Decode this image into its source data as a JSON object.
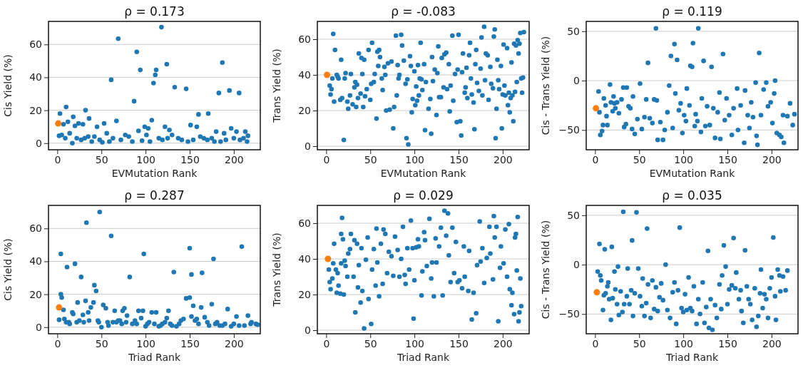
{
  "chart_data": [
    {
      "type": "scatter",
      "title": "ρ = 0.173",
      "xlabel": "EVMutation Rank",
      "ylabel": "Cis Yield (%)",
      "xlim": [
        -10,
        230
      ],
      "xticks": [
        0,
        50,
        100,
        150,
        200
      ],
      "ylim": [
        -4,
        74
      ],
      "yticks": [
        0,
        20,
        40,
        60
      ],
      "grid": "y",
      "marker": "circle",
      "series": [
        {
          "color": "#1f77b4",
          "x": [
            61,
            69,
            87,
            90,
            94,
            109,
            111,
            112,
            118,
            124,
            133,
            146,
            160,
            171,
            183,
            187,
            195,
            206,
            10,
            3,
            32,
            18,
            36,
            53,
            67,
            107,
            151,
            158,
            197,
            213,
            12,
            7,
            29,
            24,
            45,
            99,
            103,
            122,
            127,
            189,
            180,
            203,
            2,
            5,
            9,
            14,
            17,
            20,
            22,
            27,
            31,
            35,
            39,
            42,
            48,
            51,
            56,
            59,
            63,
            72,
            77,
            81,
            85,
            92,
            96,
            101,
            105,
            115,
            119,
            125,
            130,
            137,
            141,
            148,
            154,
            162,
            166,
            170,
            175,
            178,
            185,
            191,
            200,
            207,
            211,
            215,
            216
          ],
          "values": [
            38.5,
            63.5,
            25.5,
            55.5,
            44.5,
            36.5,
            41.5,
            44.5,
            70.5,
            48,
            34,
            33,
            17.5,
            18,
            30.5,
            49,
            32,
            30.5,
            22,
            18,
            20,
            16,
            15,
            12,
            13.5,
            14,
            11,
            10,
            9,
            7,
            13,
            11.5,
            11.5,
            12,
            10,
            10,
            9,
            10,
            8,
            6,
            7,
            7,
            4.5,
            5,
            3,
            6,
            0,
            10.5,
            3,
            2,
            3,
            4,
            1,
            4,
            2,
            0.5,
            6,
            1,
            3,
            2,
            5,
            4,
            1,
            7.5,
            1.5,
            5,
            1,
            3,
            2,
            3,
            5,
            3,
            2,
            1,
            2,
            4,
            3,
            2,
            3,
            1,
            1,
            2,
            3,
            2,
            3,
            1,
            4.5
          ]
        },
        {
          "color": "#ff7f0e",
          "x": [
            1
          ],
          "values": [
            12
          ]
        }
      ]
    },
    {
      "type": "scatter",
      "title": "ρ = -0.083",
      "xlabel": "EVMutation Rank",
      "ylabel": "Trans Yield (%)",
      "xlim": [
        -10,
        230
      ],
      "xticks": [
        0,
        50,
        100,
        150,
        200
      ],
      "ylim": [
        -2,
        70
      ],
      "yticks": [
        0,
        20,
        40,
        60
      ],
      "grid": "y",
      "marker": "circle",
      "series": [
        {
          "color": "#1f77b4",
          "x": [
            4,
            5,
            6,
            7,
            8,
            9,
            10,
            12,
            13,
            14,
            16,
            17,
            18,
            20,
            21,
            22,
            24,
            25,
            27,
            28,
            30,
            32,
            33,
            34,
            35,
            36,
            37,
            39,
            40,
            41,
            42,
            43,
            44,
            46,
            48,
            50,
            51,
            52,
            54,
            55,
            57,
            58,
            59,
            60,
            61,
            63,
            64,
            66,
            67,
            68,
            70,
            72,
            74,
            76,
            77,
            79,
            80,
            81,
            82,
            83,
            85,
            86,
            88,
            90,
            91,
            92,
            93,
            95,
            96,
            97,
            98,
            100,
            101,
            102,
            103,
            104,
            105,
            106,
            107,
            108,
            109,
            111,
            112,
            113,
            116,
            118,
            119,
            120,
            121,
            123,
            125,
            126,
            127,
            128,
            130,
            131,
            133,
            134,
            136,
            137,
            139,
            140,
            141,
            143,
            144,
            146,
            148,
            149,
            150,
            152,
            153,
            154,
            155,
            157,
            158,
            159,
            160,
            162,
            163,
            164,
            165,
            167,
            168,
            169,
            170,
            171,
            173,
            175,
            176,
            177,
            179,
            180,
            181,
            183,
            184,
            186,
            187,
            189,
            190,
            191,
            192,
            193,
            194,
            195,
            196,
            198,
            199,
            200,
            201,
            202,
            203,
            205,
            206,
            207,
            208,
            209,
            210,
            211,
            212,
            213,
            214,
            215,
            216,
            217,
            218,
            219,
            220,
            221,
            222,
            223,
            224
          ],
          "values": [
            34,
            29,
            32,
            38,
            63,
            25,
            54,
            40,
            39,
            38,
            26,
            48.5,
            27,
            3.5,
            38,
            41,
            25,
            21,
            28.5,
            40.5,
            23.5,
            33,
            36,
            22,
            34.5,
            27,
            52,
            29.5,
            49.5,
            40.5,
            22,
            48.5,
            28,
            32,
            54,
            26,
            35,
            58,
            36,
            40.5,
            15.5,
            53,
            45,
            54,
            50,
            38,
            31.5,
            44.5,
            40,
            20,
            46.5,
            20.5,
            47.5,
            10,
            22,
            62,
            28.5,
            45.5,
            38,
            40,
            62.5,
            56.5,
            48,
            35,
            4.5,
            37.5,
            1,
            50.5,
            45,
            19,
            26.5,
            42,
            23,
            33.5,
            25.5,
            45.5,
            28.5,
            38,
            58,
            37.5,
            31.5,
            46,
            9,
            36,
            21,
            26.5,
            7,
            50,
            36.5,
            43,
            17.5,
            41,
            56,
            27.5,
            27.5,
            49.5,
            33,
            51.5,
            52.5,
            32,
            46,
            19.5,
            34,
            62,
            25.5,
            40.5,
            13.5,
            43,
            62.5,
            14,
            6,
            41.5,
            52,
            30,
            33,
            44,
            27,
            51,
            58,
            38,
            29,
            24.5,
            9.5,
            46,
            54,
            35.5,
            31,
            43.5,
            61,
            28.5,
            67,
            37,
            52,
            51,
            26,
            44.5,
            35,
            32.5,
            61.5,
            65.5,
            4.5,
            21,
            48.5,
            37,
            32,
            45,
            10,
            29,
            57,
            34,
            28.5,
            55,
            23,
            30,
            19,
            27,
            47,
            28.5,
            14,
            57.5,
            30.5,
            56.5,
            36,
            59.5,
            52,
            57.5,
            63.5,
            38,
            30,
            38.5,
            64
          ]
        },
        {
          "color": "#ff7f0e",
          "x": [
            1
          ],
          "values": [
            40
          ]
        }
      ]
    },
    {
      "type": "scatter",
      "title": "ρ = 0.119",
      "xlabel": "EVMutation Rank",
      "ylabel": "Cis - Trans Yield (%)",
      "xlim": [
        -10,
        230
      ],
      "xticks": [
        0,
        50,
        100,
        150,
        200
      ],
      "ylim": [
        -70,
        60
      ],
      "yticks": [
        {
          "value": -50,
          "label": "−50"
        },
        0,
        50
      ],
      "grid": "y",
      "marker": "circle",
      "series": [
        {
          "color": "#1f77b4",
          "x": [
            4,
            5,
            6,
            8,
            9,
            10,
            12,
            13,
            14,
            17,
            18,
            20,
            21,
            22,
            23,
            25,
            27,
            30,
            32,
            33,
            35,
            36,
            38,
            40,
            42,
            43,
            45,
            48,
            51,
            53,
            56,
            58,
            60,
            62,
            65,
            67,
            69,
            70,
            71,
            74,
            77,
            79,
            82,
            84,
            86,
            88,
            90,
            91,
            93,
            95,
            97,
            99,
            101,
            103,
            104,
            107,
            108,
            110,
            111,
            113,
            114,
            116,
            117,
            120,
            121,
            123,
            125,
            127,
            130,
            132,
            134,
            136,
            139,
            141,
            142,
            145,
            147,
            149,
            152,
            155,
            157,
            161,
            162,
            165,
            169,
            170,
            173,
            175,
            177,
            179,
            182,
            183,
            184,
            186,
            188,
            191,
            194,
            196,
            199,
            201,
            203,
            204,
            206,
            209,
            211,
            213,
            214,
            218,
            221,
            224,
            226
          ],
          "values": [
            -11,
            -32,
            -55,
            -51,
            -45,
            -18,
            -25,
            -36,
            -45,
            -4,
            -22,
            -31,
            -16,
            -23,
            -28,
            -22,
            -33,
            -19,
            -7,
            -47,
            -44,
            -7,
            -26,
            -28,
            -49,
            -16,
            -54,
            -39,
            -3,
            -49,
            -37,
            -19,
            18,
            -38,
            -43,
            -19,
            53,
            -20,
            -60,
            -42,
            -60,
            -50,
            -32,
            -5,
            25,
            -48,
            37,
            -13,
            21,
            -30,
            -23,
            -53,
            -35,
            -41,
            -8,
            -25,
            15,
            14,
            38,
            -46,
            -34,
            -41,
            53,
            -52,
            -18,
            20,
            -46,
            -26,
            -45,
            14,
            -28,
            -58,
            -32,
            -12,
            -59,
            27,
            -40,
            -18,
            -35,
            -55,
            -28,
            -8,
            -50,
            -25,
            -63,
            -10,
            -35,
            -48,
            -22,
            -37,
            -2,
            -56,
            -65,
            28,
            -35,
            -9,
            -2,
            -26,
            -22,
            -43,
            -13,
            0,
            -53,
            -55,
            -57,
            -35,
            -63,
            -36,
            -23,
            -45,
            -34
          ]
        },
        {
          "color": "#ff7f0e",
          "x": [
            1
          ],
          "values": [
            -28
          ]
        }
      ]
    },
    {
      "type": "scatter",
      "title": "ρ = 0.287",
      "xlabel": "Triad Rank",
      "ylabel": "Cis Yield (%)",
      "xlim": [
        -10,
        230
      ],
      "xticks": [
        0,
        50,
        100,
        150,
        200
      ],
      "ylim": [
        -4,
        74
      ],
      "yticks": [
        0,
        20,
        40,
        60
      ],
      "grid": "y",
      "marker": "circle",
      "series": [
        {
          "color": "#1f77b4",
          "x": [
            2,
            4,
            4,
            5,
            7,
            8,
            10,
            11,
            14,
            17,
            18,
            20,
            22,
            23,
            25,
            27,
            29,
            32,
            33,
            35,
            38,
            41,
            42,
            44,
            46,
            48,
            50,
            52,
            55,
            58,
            61,
            63,
            65,
            69,
            73,
            74,
            76,
            79,
            82,
            85,
            88,
            92,
            95,
            97,
            98,
            100,
            104,
            107,
            110,
            112,
            115,
            119,
            124,
            126,
            130,
            132,
            135,
            140,
            146,
            150,
            150,
            152,
            152,
            154,
            158,
            163,
            164,
            167,
            172,
            175,
            177,
            181,
            187,
            193,
            197,
            203,
            209,
            212,
            216,
            219,
            220,
            225,
            227,
            13,
            30,
            36,
            47,
            57,
            67,
            71,
            78,
            90,
            102,
            117,
            122,
            128,
            138,
            143,
            156,
            160,
            170,
            179,
            184,
            190,
            200,
            206
          ],
          "values": [
            4.5,
            20,
            44.5,
            18,
            10.5,
            5,
            3,
            36.5,
            2,
            9,
            8,
            38.5,
            3,
            15,
            4,
            30.5,
            7.5,
            16,
            63.5,
            9,
            12,
            15,
            25.5,
            22,
            4,
            70,
            0,
            13.5,
            11.5,
            1,
            55.5,
            3,
            10,
            4,
            2,
            10,
            11.5,
            7,
            30.5,
            2,
            4,
            10,
            5.5,
            10,
            44.5,
            0.5,
            3,
            9,
            2,
            9,
            0.5,
            2,
            5.5,
            10,
            1,
            33.5,
            0.5,
            4,
            17.5,
            18,
            48,
            6.5,
            32,
            13,
            5,
            12,
            33,
            6,
            1,
            14,
            41.5,
            3,
            1,
            11,
            0.5,
            6.5,
            49,
            1,
            7,
            2,
            3,
            2,
            1.5,
            3,
            3,
            4,
            3,
            3,
            3,
            4,
            3,
            2,
            2,
            1,
            3,
            2,
            2,
            5,
            4,
            2,
            3,
            2,
            1,
            2,
            2,
            1
          ]
        },
        {
          "color": "#ff7f0e",
          "x": [
            2
          ],
          "values": [
            12
          ]
        }
      ]
    },
    {
      "type": "scatter",
      "title": "ρ = 0.029",
      "xlabel": "Triad Rank",
      "ylabel": "Trans Yield (%)",
      "xlim": [
        -10,
        230
      ],
      "xticks": [
        0,
        50,
        100,
        150,
        200
      ],
      "ylim": [
        -2,
        70
      ],
      "yticks": [
        0,
        20,
        40,
        60
      ],
      "grid": "y",
      "marker": "circle",
      "series": [
        {
          "color": "#1f77b4",
          "x": [
            3,
            4,
            5,
            7,
            8,
            9,
            11,
            12,
            13,
            14,
            16,
            17,
            17,
            18,
            19,
            20,
            21,
            22,
            24,
            25,
            27,
            28,
            31,
            32,
            33,
            35,
            36,
            37,
            39,
            40,
            41,
            43,
            45,
            47,
            48,
            51,
            52,
            54,
            56,
            57,
            58,
            60,
            62,
            64,
            65,
            67,
            69,
            71,
            74,
            76,
            78,
            81,
            83,
            85,
            87,
            89,
            90,
            92,
            94,
            96,
            98,
            99,
            100,
            102,
            104,
            105,
            108,
            109,
            111,
            112,
            114,
            117,
            119,
            120,
            122,
            124,
            125,
            128,
            130,
            132,
            134,
            136,
            138,
            139,
            141,
            143,
            145,
            147,
            149,
            151,
            154,
            156,
            157,
            161,
            162,
            165,
            167,
            170,
            171,
            174,
            175,
            177,
            179,
            182,
            185,
            186,
            189,
            190,
            191,
            193,
            195,
            197,
            198,
            201,
            203,
            205,
            207,
            208,
            210,
            211,
            213,
            214,
            215,
            216,
            217,
            218,
            219,
            220,
            221
          ],
          "values": [
            34,
            27,
            23,
            29,
            37.5,
            48.5,
            34,
            21,
            32,
            25,
            20.5,
            37.5,
            54,
            63,
            51,
            20,
            39,
            36,
            30,
            43,
            45.5,
            54,
            30,
            50.5,
            10,
            48.5,
            24,
            36.5,
            15.5,
            46,
            22,
            1,
            39.5,
            52,
            17.5,
            3.5,
            34,
            45.5,
            25,
            57,
            38,
            19,
            48.5,
            26,
            56.5,
            54,
            32,
            44,
            41.5,
            30.5,
            52.5,
            45,
            30,
            40,
            58,
            31,
            26,
            46,
            34,
            61.5,
            46,
            6.5,
            28,
            46.5,
            51,
            47,
            19.5,
            33,
            55,
            50.5,
            36,
            62.5,
            29,
            38,
            19,
            51.5,
            38,
            47,
            57.5,
            19.5,
            67,
            53,
            65.5,
            42,
            27,
            57.5,
            32,
            49.5,
            27,
            28,
            23.5,
            47,
            30,
            22,
            44.5,
            6,
            21,
            9.5,
            36.5,
            61,
            38.5,
            46,
            26.5,
            40.5,
            58,
            43,
            28.5,
            64,
            52,
            58,
            5,
            35,
            47,
            37.5,
            56.5,
            30,
            59.5,
            23,
            14,
            21,
            9,
            52,
            54,
            33.5,
            63.5,
            5,
            10,
            29,
            13.5
          ]
        },
        {
          "color": "#ff7f0e",
          "x": [
            2
          ],
          "values": [
            40
          ]
        }
      ]
    },
    {
      "type": "scatter",
      "title": "ρ = 0.035",
      "xlabel": "Triad Rank",
      "ylabel": "Cis - Trans Yield (%)",
      "xlim": [
        -10,
        230
      ],
      "xticks": [
        0,
        50,
        100,
        150,
        200
      ],
      "ylim": [
        -70,
        60
      ],
      "yticks": [
        {
          "value": -50,
          "label": "−50"
        },
        0,
        50
      ],
      "grid": "y",
      "marker": "circle",
      "series": [
        {
          "color": "#1f77b4",
          "x": [
            3,
            5,
            6,
            7,
            9,
            10,
            11,
            12,
            14,
            15,
            16,
            18,
            19,
            20,
            22,
            23,
            25,
            26,
            27,
            29,
            31,
            32,
            33,
            36,
            37,
            39,
            41,
            42,
            43,
            45,
            47,
            49,
            51,
            53,
            54,
            56,
            58,
            59,
            60,
            63,
            65,
            67,
            69,
            71,
            73,
            75,
            77,
            80,
            82,
            85,
            88,
            90,
            92,
            94,
            96,
            98,
            100,
            102,
            104,
            106,
            108,
            110,
            112,
            115,
            117,
            119,
            122,
            124,
            126,
            128,
            129,
            131,
            133,
            136,
            138,
            141,
            143,
            144,
            146,
            148,
            150,
            152,
            155,
            157,
            159,
            160,
            163,
            165,
            166,
            168,
            170,
            172,
            174,
            176,
            178,
            181,
            183,
            185,
            187,
            188,
            190,
            192,
            194,
            196,
            198,
            200,
            202,
            204,
            205,
            207,
            209,
            210,
            213,
            216,
            218
          ],
          "values": [
            -7,
            21,
            -11,
            -16,
            -46,
            -31,
            15.5,
            -29,
            -22,
            -18,
            -35,
            -56,
            18,
            -34,
            -7,
            -25,
            -40,
            -2,
            -51,
            -27,
            -48,
            53.5,
            -40,
            -32,
            -4,
            -40,
            -26,
            24.5,
            -52,
            -29,
            53,
            -4,
            -32,
            -42,
            -14,
            -52,
            -39,
            36.5,
            -20,
            -54,
            -16,
            -45,
            -23,
            -47,
            -33,
            -19,
            -36,
            0,
            -46,
            -54,
            -28,
            -18,
            -60,
            -26,
            37.5,
            -44,
            -48,
            -30,
            -46,
            -13,
            -44,
            -47,
            -22,
            -60,
            -35,
            -50,
            -18,
            -59,
            -43,
            14,
            -64,
            -35,
            -66,
            -41,
            -54,
            -20,
            -45,
            -11,
            19.5,
            -2,
            -40,
            -25,
            -21,
            27,
            -24,
            -8,
            -35,
            -26,
            -47,
            -59,
            14.5,
            -22,
            -35,
            -40,
            -56,
            -24,
            -63,
            -52,
            -29,
            -5,
            -44,
            -30,
            -35,
            -54,
            -24,
            -13,
            27.5,
            -32,
            -56,
            -5,
            -11,
            -27,
            -12,
            -26,
            -6
          ]
        },
        {
          "color": "#ff7f0e",
          "x": [
            2
          ],
          "values": [
            -28
          ]
        }
      ]
    }
  ]
}
